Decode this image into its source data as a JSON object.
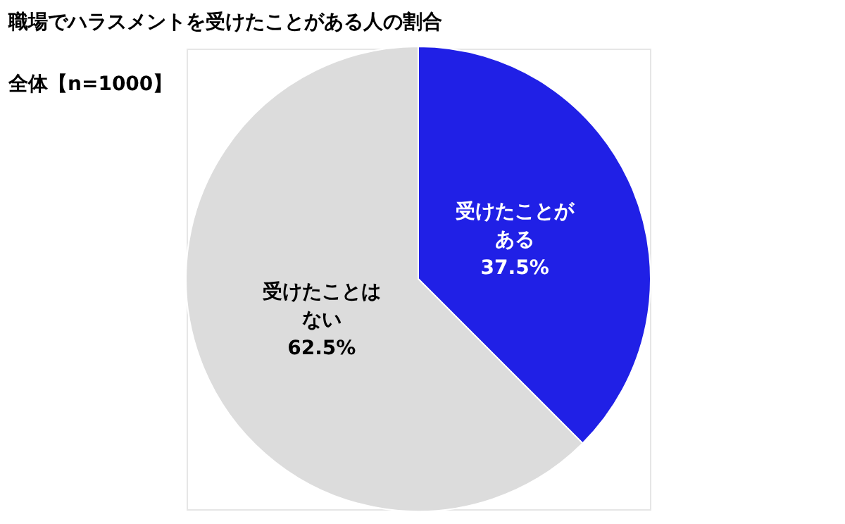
{
  "chart_data": {
    "type": "pie",
    "title": "職場でハラスメントを受けたことがある人の割合",
    "subtitle": "全体【n=1000】",
    "categories": [
      "受けたことがある",
      "受けたことはない"
    ],
    "values": [
      37.5,
      62.5
    ],
    "colors": [
      "#2020e6",
      "#dcdcdc"
    ],
    "value_labels": [
      "37.5%",
      "62.5%"
    ],
    "legend": false
  }
}
